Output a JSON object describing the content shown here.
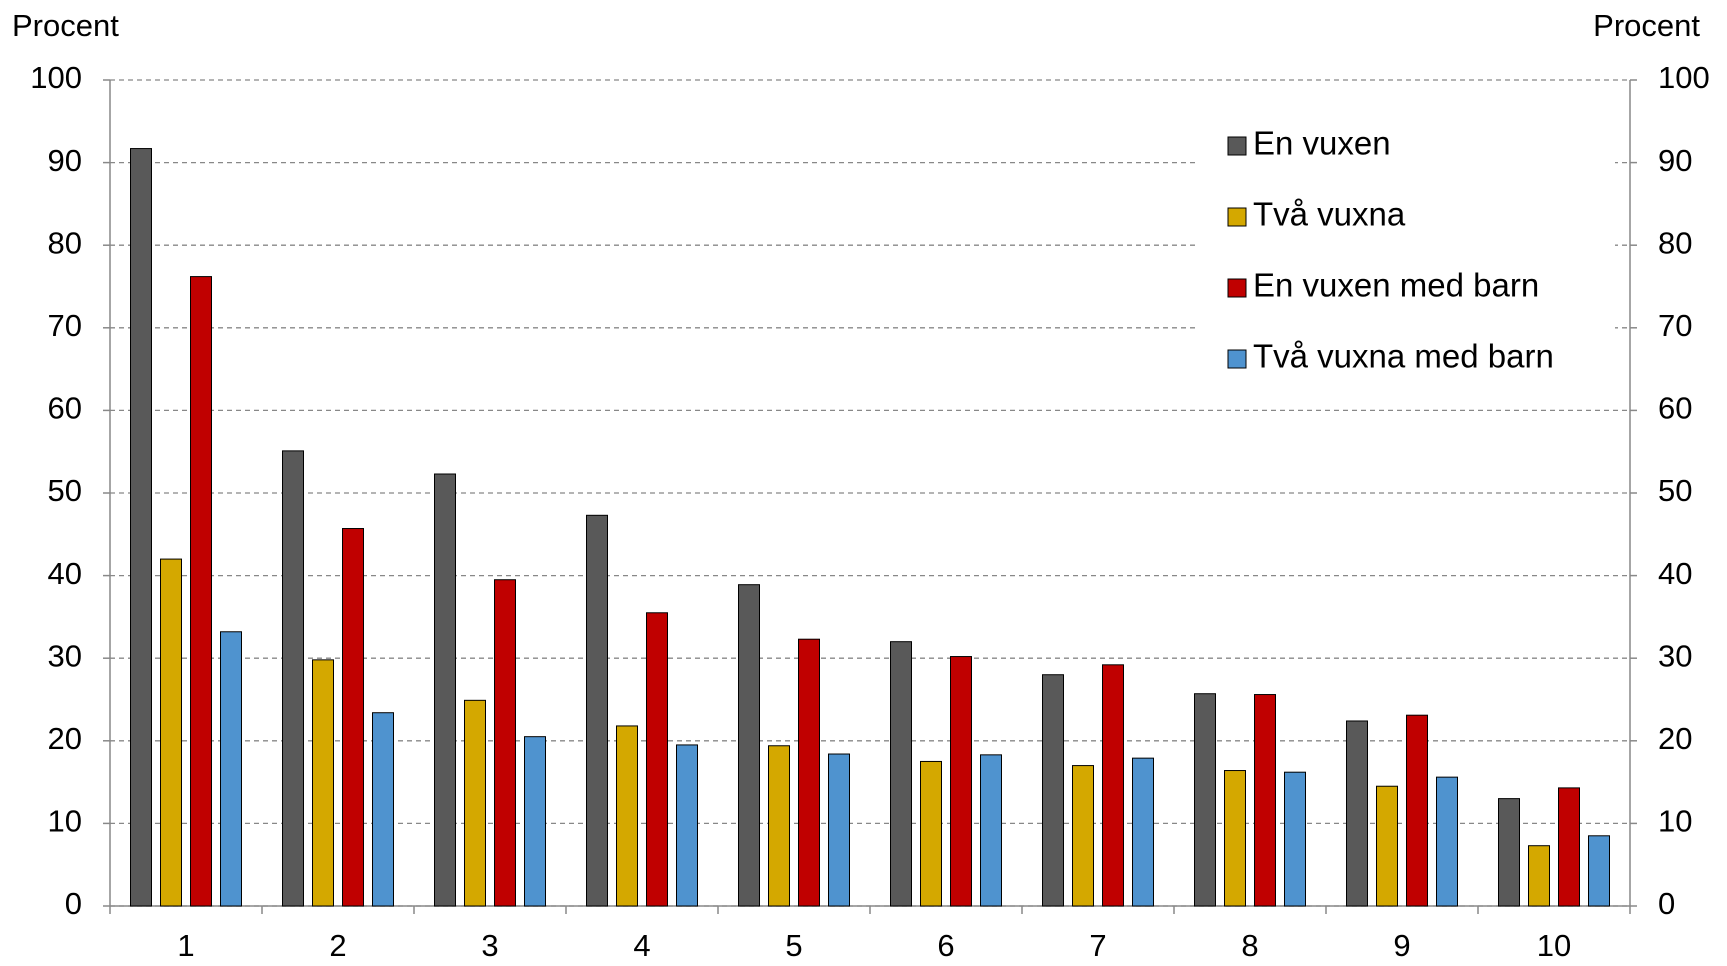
{
  "chart_data": {
    "type": "bar",
    "y_label": "Procent",
    "y2_label": "Procent",
    "categories": [
      "1",
      "2",
      "3",
      "4",
      "5",
      "6",
      "7",
      "8",
      "9",
      "10"
    ],
    "series": [
      {
        "name": "En vuxen",
        "color": "#595959",
        "values": [
          91.7,
          55.1,
          52.3,
          47.3,
          38.9,
          32.0,
          28.0,
          25.7,
          22.4,
          13.0
        ]
      },
      {
        "name": "Två vuxna",
        "color": "#d4a800",
        "values": [
          42.0,
          29.8,
          24.9,
          21.8,
          19.4,
          17.5,
          17.0,
          16.4,
          14.5,
          7.3
        ]
      },
      {
        "name": "En vuxen med barn",
        "color": "#c00000",
        "values": [
          76.2,
          45.7,
          39.5,
          35.5,
          32.3,
          30.2,
          29.2,
          25.6,
          23.1,
          14.3
        ]
      },
      {
        "name": "Två vuxna med barn",
        "color": "#4f93cf",
        "values": [
          33.2,
          23.4,
          20.5,
          19.5,
          18.4,
          18.3,
          17.9,
          16.2,
          15.6,
          8.5
        ]
      }
    ],
    "ylim": [
      0,
      100
    ],
    "yticks": [
      0,
      10,
      20,
      30,
      40,
      50,
      60,
      70,
      80,
      90,
      100
    ],
    "y2lim": [
      0,
      100
    ],
    "y2ticks": [
      0,
      10,
      20,
      30,
      40,
      50,
      60,
      70,
      80,
      90,
      100
    ],
    "grid": true,
    "legend": "top-right"
  }
}
